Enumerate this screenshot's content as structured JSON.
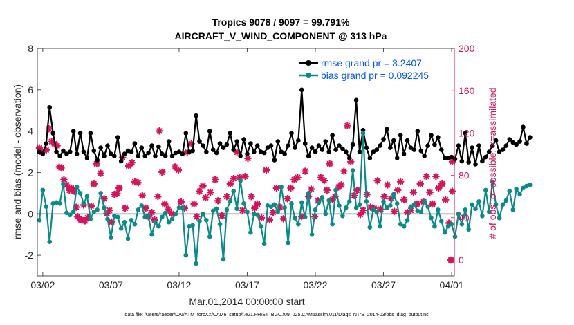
{
  "chart_data": {
    "type": "line",
    "title_line1": "Tropics 9078 / 9097 = 99.791%",
    "title_line2": "AIRCRAFT_V_WIND_COMPONENT @ 313 hPa",
    "xlabel": "Mar.01,2014 00:00:00 start",
    "ylabel_left": "rmse and bias (model - observation)",
    "ylabel_right": "# of obs: o=possible; ×=assimilated",
    "footer": "data file: /Users/raeder/DAI/ATM_forcXX/CAM6_setup/f.e21.FHIST_BGC.f09_025.CAM6assim.011/Diags_NTrS_2014-03/obs_diag_output.nc",
    "x_ticks": [
      "03/02",
      "03/07",
      "03/12",
      "03/17",
      "03/22",
      "03/27",
      "04/01"
    ],
    "x_tick_days": [
      1,
      6,
      11,
      16,
      21,
      26,
      31
    ],
    "xlim": [
      0.6,
      31.2
    ],
    "ylim_left": [
      -3,
      8
    ],
    "yticks_left": [
      "-2",
      "0",
      "2",
      "4",
      "6",
      "8"
    ],
    "ylim_right": [
      -15,
      200
    ],
    "yticks_right": [
      "0",
      "40",
      "80",
      "120",
      "160",
      "200"
    ],
    "x_start_day": 0.75,
    "x_step_days": 0.25,
    "colors": {
      "rmse": "#000000",
      "bias": "#0a8a8a",
      "obs": "#d4145a",
      "zero_line": "#b8b8b8",
      "right_axis": "#d4145a",
      "legend_text": "#0055ff"
    },
    "series": [
      {
        "name": "rmse grand pr = 3.2407",
        "values": [
          3.0,
          2.9,
          3.4,
          5.15,
          3.9,
          3.0,
          2.8,
          3.05,
          2.9,
          3.0,
          4.0,
          2.9,
          3.9,
          3.0,
          2.7,
          3.9,
          3.05,
          2.6,
          3.2,
          2.8,
          3.3,
          2.9,
          2.8,
          3.7,
          2.55,
          2.9,
          3.05,
          3.0,
          3.4,
          2.8,
          3.2,
          2.8,
          2.95,
          3.3,
          2.8,
          3.25,
          2.9,
          2.8,
          3.5,
          2.8,
          2.95,
          3.0,
          2.9,
          3.9,
          3.0,
          3.05,
          4.75,
          3.5,
          3.3,
          3.0,
          4.0,
          3.1,
          2.95,
          3.4,
          3.2,
          3.35,
          3.9,
          3.1,
          3.5,
          2.8,
          3.6,
          2.9,
          3.4,
          3.0,
          3.3,
          3.0,
          2.95,
          3.2,
          3.3,
          2.6,
          3.5,
          3.0,
          2.9,
          3.3,
          3.9,
          3.2,
          3.55,
          6.0,
          3.4,
          2.8,
          3.2,
          3.0,
          3.3,
          3.1,
          3.5,
          3.0,
          3.8,
          3.1,
          3.3,
          3.15,
          3.0,
          2.7,
          3.35,
          5.5,
          3.0,
          4.05,
          3.2,
          2.7,
          3.0,
          3.1,
          3.3,
          3.6,
          4.1,
          3.2,
          3.55,
          2.7,
          3.8,
          2.9,
          3.55,
          3.2,
          3.1,
          4.0,
          3.05,
          2.8,
          3.3,
          3.8,
          3.35,
          3.7,
          3.1,
          2.7,
          2.7,
          2.75,
          2.65,
          3.3,
          2.55,
          3.9,
          2.5,
          3.2,
          2.4,
          3.3,
          2.55,
          2.75,
          3.0,
          3.3,
          3.55,
          3.0,
          3.1,
          3.3,
          3.6,
          3.45,
          3.35,
          3.5,
          4.2,
          3.4,
          3.7
        ]
      },
      {
        "name": "bias grand pr = 0.092245",
        "values": [
          -0.3,
          1.15,
          0.35,
          -1.35,
          0.5,
          0.55,
          0.5,
          1.45,
          0.05,
          -0.05,
          0.1,
          1.3,
          1.0,
          0.5,
          0.85,
          -0.25,
          0.1,
          0.2,
          1.0,
          0.3,
          -0.25,
          -1.15,
          -0.1,
          -0.15,
          -0.7,
          -0.4,
          -1.2,
          -0.3,
          -0.5,
          0.2,
          0.4,
          -0.15,
          -0.1,
          -1.0,
          -0.4,
          -0.6,
          -0.15,
          0.05,
          -0.4,
          -0.25,
          0.0,
          0.3,
          0.3,
          -2.0,
          -0.6,
          -0.55,
          -2.4,
          -0.35,
          0.0,
          -0.3,
          -1.1,
          0.15,
          0.25,
          -0.5,
          -2.2,
          0.2,
          0.6,
          1.1,
          0.25,
          1.6,
          0.5,
          0.1,
          -0.9,
          0.0,
          -0.05,
          -0.6,
          -1.45,
          0.4,
          0.35,
          0.45,
          0.1,
          1.3,
          0.3,
          -1.4,
          0.5,
          -0.2,
          -0.5,
          0.55,
          -0.15,
          1.0,
          -1.0,
          0.2,
          0.55,
          0.8,
          0.0,
          0.65,
          -0.5,
          1.15,
          0.4,
          -0.1,
          0.3,
          0.6,
          2.1,
          0.3,
          0.45,
          3.9,
          0.6,
          -0.65,
          0.2,
          0.1,
          -0.6,
          0.6,
          0.3,
          0.4,
          0.95,
          0.5,
          -0.5,
          -0.6,
          -0.3,
          0.35,
          0.45,
          0.15,
          0.1,
          0.6,
          0.35,
          -0.2,
          -0.6,
          0.2,
          -0.35,
          -0.9,
          -0.6,
          -0.5,
          -1.1,
          0.0,
          -0.5,
          0.2,
          -0.75,
          0.45,
          0.25,
          0.6,
          -0.1,
          1.15,
          0.1,
          1.55,
          0.45,
          -0.2,
          0.45,
          0.65,
          1.1,
          0.2,
          1.2,
          0.95,
          1.25,
          1.35,
          1.4
        ]
      },
      {
        "name": "# of obs assimilated",
        "x": [
          0.75,
          0.95,
          1.25,
          1.45,
          1.65,
          1.85,
          2.05,
          2.2,
          2.35,
          2.55,
          2.75,
          2.95,
          3.1,
          3.3,
          3.45,
          3.55,
          3.8,
          4.0,
          4.1,
          4.3,
          4.55,
          4.75,
          4.95,
          5.25,
          5.5,
          5.7,
          5.9,
          6.05,
          6.25,
          6.45,
          6.6,
          6.85,
          7.05,
          7.3,
          7.55,
          7.75,
          8.0,
          8.3,
          8.55,
          8.75,
          9.0,
          9.2,
          9.45,
          9.55,
          9.75,
          9.95,
          10.2,
          10.45,
          10.7,
          10.95,
          11.15,
          11.4,
          11.6,
          11.9,
          12.1,
          12.3,
          12.5,
          12.75,
          12.95,
          13.3,
          13.65,
          13.85,
          14.15,
          14.5,
          14.75,
          15.0,
          15.25,
          15.45,
          15.65,
          15.85,
          16.05,
          16.3,
          16.55,
          16.75,
          17.05,
          17.4,
          17.65,
          17.9,
          18.15,
          18.4,
          18.65,
          18.95,
          19.2,
          19.45,
          19.7,
          20.0,
          20.25,
          20.5,
          20.7,
          20.95,
          21.2,
          21.4,
          21.65,
          21.85,
          22.05,
          22.25,
          22.45,
          22.7,
          22.9,
          23.1,
          23.35,
          23.6,
          23.85,
          24.05,
          24.3,
          24.5,
          24.8,
          25.05,
          25.3,
          25.55,
          25.8,
          26.05,
          26.3,
          26.55,
          26.8,
          27.05,
          27.25,
          27.5,
          27.75,
          28.0,
          28.2,
          28.45,
          28.7,
          28.95,
          29.15,
          29.4,
          29.6,
          29.85,
          30.05,
          30.3,
          30.55,
          30.8,
          31.05
        ],
        "values": [
          106,
          102,
          104,
          124,
          112,
          110,
          108,
          88,
          87,
          76,
          71,
          66,
          68,
          65,
          50,
          41,
          38,
          52,
          37,
          40,
          51,
          72,
          91,
          82,
          58,
          44,
          47,
          36,
          62,
          63,
          68,
          97,
          49,
          89,
          92,
          74,
          73,
          61,
          49,
          41,
          45,
          38,
          60,
          122,
          83,
          53,
          48,
          44,
          88,
          85,
          55,
          49,
          102,
          110,
          53,
          41,
          65,
          70,
          59,
          64,
          76,
          56,
          42,
          60,
          72,
          77,
          102,
          78,
          47,
          79,
          96,
          60,
          49,
          53,
          40,
          85,
          38,
          45,
          68,
          50,
          39,
          58,
          68,
          76,
          78,
          41,
          84,
          60,
          67,
          41,
          56,
          78,
          75,
          66,
          91,
          57,
          60,
          69,
          71,
          84,
          127,
          93,
          61,
          66,
          43,
          47,
          62,
          50,
          49,
          75,
          48,
          60,
          71,
          58,
          46,
          66,
          74,
          57,
          45,
          47,
          64,
          53,
          72,
          55,
          79,
          64,
          53,
          79,
          68,
          72,
          57,
          35,
          65
        ],
        "extra_points": [
          {
            "x": 24.7,
            "y": 171
          },
          {
            "x": 30.95,
            "y": 0
          },
          {
            "x": 31.05,
            "y": 93
          }
        ]
      }
    ]
  }
}
